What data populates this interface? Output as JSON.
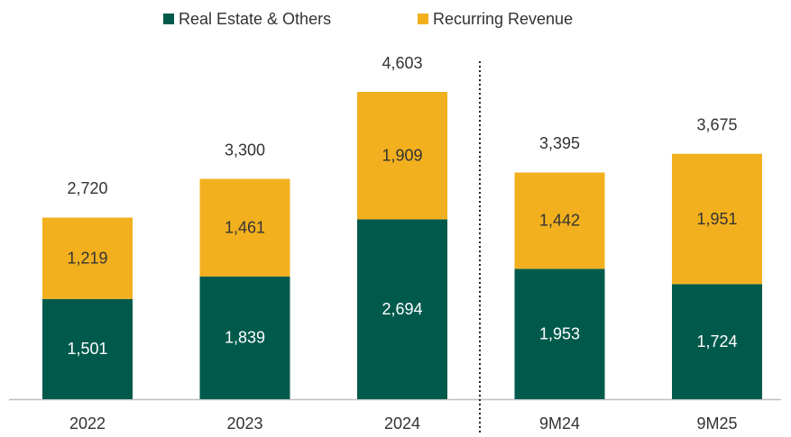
{
  "chart_data": {
    "type": "stacked-bar",
    "categories": [
      "2022",
      "2023",
      "2024",
      "9M24",
      "9M25"
    ],
    "series": [
      {
        "name": "Real Estate & Others",
        "color": "#005a4b",
        "values": [
          1501,
          1839,
          2694,
          1953,
          1724
        ],
        "value_labels": [
          "1,501",
          "1,839",
          "2,694",
          "1,953",
          "1,724"
        ]
      },
      {
        "name": "Recurring Revenue",
        "color": "#f2b01e",
        "values": [
          1219,
          1461,
          1909,
          1442,
          1951
        ],
        "value_labels": [
          "1,219",
          "1,461",
          "1,909",
          "1,442",
          "1,951"
        ]
      }
    ],
    "totals": [
      2720,
      3300,
      4603,
      3395,
      3675
    ],
    "total_labels": [
      "2,720",
      "3,300",
      "4,603",
      "3,395",
      "3,675"
    ],
    "legend": "top"
  }
}
